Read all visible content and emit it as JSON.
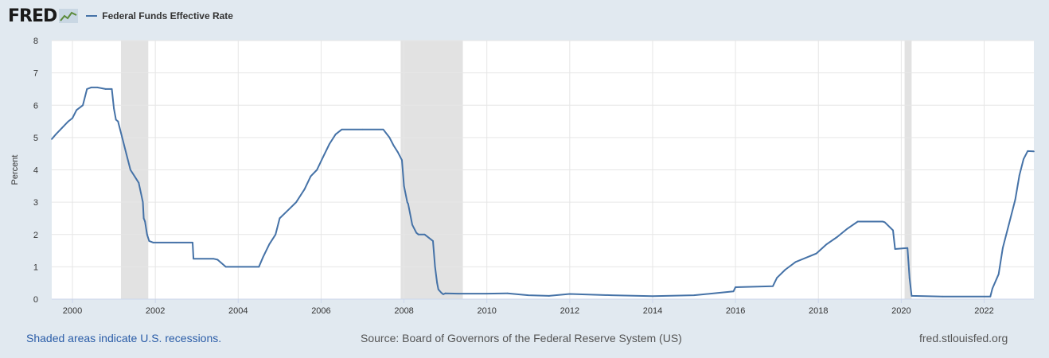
{
  "brand": {
    "name": "FRED"
  },
  "chart_data": {
    "type": "line",
    "title": "",
    "xlabel": "",
    "ylabel": "Percent",
    "xlim": [
      1999.5,
      2023.2
    ],
    "ylim": [
      0,
      8
    ],
    "grid": true,
    "legend_position": "top-left",
    "xticks": [
      "2000",
      "2002",
      "2004",
      "2006",
      "2008",
      "2010",
      "2012",
      "2014",
      "2016",
      "2018",
      "2020",
      "2022"
    ],
    "yticks": [
      "0",
      "1",
      "2",
      "3",
      "4",
      "5",
      "6",
      "7",
      "8"
    ],
    "recessions": [
      [
        2001.17,
        2001.83
      ],
      [
        2007.92,
        2009.42
      ],
      [
        2020.08,
        2020.25
      ]
    ],
    "recession_color": "#e2e2e2",
    "series": [
      {
        "name": "Federal Funds Effective Rate",
        "color": "#4572a7",
        "x": [
          1999.5,
          1999.6,
          1999.75,
          1999.9,
          2000.0,
          2000.1,
          2000.25,
          2000.35,
          2000.45,
          2000.6,
          2000.8,
          2000.95,
          2001.0,
          2001.05,
          2001.1,
          2001.2,
          2001.3,
          2001.4,
          2001.5,
          2001.6,
          2001.7,
          2001.72,
          2001.75,
          2001.8,
          2001.85,
          2001.95,
          2002.5,
          2002.9,
          2002.92,
          2003.4,
          2003.5,
          2003.7,
          2004.5,
          2004.6,
          2004.75,
          2004.9,
          2005.0,
          2005.2,
          2005.4,
          2005.6,
          2005.75,
          2005.9,
          2006.05,
          2006.2,
          2006.35,
          2006.5,
          2007.0,
          2007.5,
          2007.65,
          2007.75,
          2007.85,
          2007.95,
          2008.0,
          2008.08,
          2008.1,
          2008.2,
          2008.3,
          2008.35,
          2008.5,
          2008.7,
          2008.75,
          2008.8,
          2008.83,
          2008.9,
          2008.95,
          2009.0,
          2009.3,
          2010.0,
          2010.5,
          2011.0,
          2011.5,
          2012.0,
          2013.0,
          2014.0,
          2015.0,
          2015.95,
          2016.0,
          2016.9,
          2017.0,
          2017.2,
          2017.45,
          2017.95,
          2018.2,
          2018.45,
          2018.7,
          2018.95,
          2019.55,
          2019.6,
          2019.8,
          2019.85,
          2020.15,
          2020.2,
          2020.25,
          2021.0,
          2022.15,
          2022.2,
          2022.35,
          2022.45,
          2022.6,
          2022.75,
          2022.85,
          2022.95,
          2023.05,
          2023.2
        ],
        "y": [
          4.95,
          5.1,
          5.3,
          5.5,
          5.6,
          5.85,
          6.0,
          6.5,
          6.55,
          6.55,
          6.5,
          6.5,
          5.9,
          5.55,
          5.5,
          5.0,
          4.5,
          4.0,
          3.8,
          3.6,
          3.0,
          2.5,
          2.4,
          2.0,
          1.8,
          1.75,
          1.75,
          1.75,
          1.25,
          1.25,
          1.22,
          1.0,
          1.0,
          1.3,
          1.7,
          2.0,
          2.5,
          2.75,
          3.0,
          3.4,
          3.8,
          4.0,
          4.4,
          4.8,
          5.1,
          5.25,
          5.25,
          5.25,
          5.0,
          4.75,
          4.55,
          4.3,
          3.5,
          3.0,
          2.95,
          2.3,
          2.05,
          2.0,
          2.0,
          1.8,
          1.0,
          0.5,
          0.3,
          0.2,
          0.15,
          0.18,
          0.17,
          0.17,
          0.18,
          0.12,
          0.1,
          0.16,
          0.12,
          0.09,
          0.12,
          0.24,
          0.37,
          0.4,
          0.66,
          0.91,
          1.15,
          1.41,
          1.7,
          1.92,
          2.18,
          2.4,
          2.4,
          2.38,
          2.13,
          1.55,
          1.58,
          0.65,
          0.1,
          0.08,
          0.08,
          0.33,
          0.77,
          1.58,
          2.33,
          3.08,
          3.83,
          4.33,
          4.58,
          4.57
        ]
      }
    ]
  },
  "footer": {
    "note": "Shaded areas indicate U.S. recessions.",
    "source": "Source: Board of Governors of the Federal Reserve System (US)",
    "site": "fred.stlouisfed.org"
  }
}
